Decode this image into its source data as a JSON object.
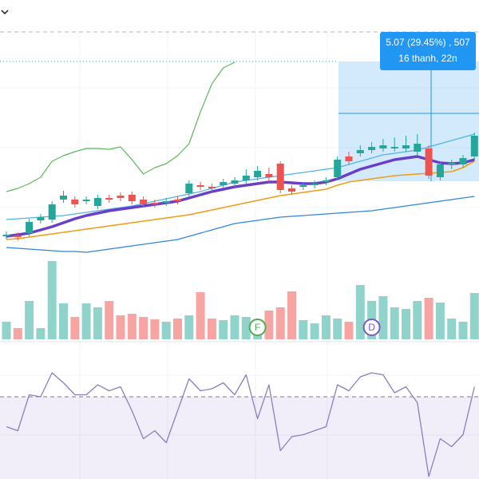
{
  "chart_data": {
    "type": "candlestick",
    "ylim": [
      0,
      300
    ],
    "open": [
      44,
      45,
      48,
      64,
      65,
      90,
      90,
      88,
      82,
      92,
      95,
      96,
      90,
      86,
      86,
      90,
      98,
      108,
      106,
      108,
      110,
      114,
      118,
      122,
      135,
      104,
      106,
      108,
      112,
      118,
      144,
      148,
      152,
      154,
      154,
      154,
      150,
      154,
      118,
      134,
      134,
      144
    ],
    "high": [
      50,
      49,
      66,
      72,
      88,
      101,
      94,
      94,
      96,
      96,
      99,
      100,
      94,
      90,
      92,
      94,
      114,
      112,
      110,
      116,
      118,
      128,
      132,
      130,
      138,
      108,
      112,
      114,
      118,
      144,
      150,
      158,
      162,
      166,
      168,
      170,
      172,
      158,
      138,
      140,
      146,
      174
    ],
    "low": [
      40,
      39,
      44,
      60,
      61,
      86,
      80,
      84,
      78,
      86,
      88,
      84,
      80,
      80,
      82,
      84,
      94,
      102,
      100,
      104,
      106,
      110,
      114,
      112,
      98,
      96,
      102,
      104,
      108,
      114,
      134,
      144,
      148,
      150,
      150,
      150,
      146,
      116,
      114,
      128,
      130,
      140
    ],
    "close": [
      46,
      43,
      62,
      68,
      84,
      95,
      84,
      90,
      92,
      90,
      92,
      88,
      84,
      84,
      88,
      88,
      110,
      106,
      104,
      112,
      114,
      120,
      126,
      118,
      102,
      100,
      108,
      110,
      114,
      140,
      138,
      152,
      156,
      158,
      156,
      158,
      160,
      120,
      134,
      136,
      142,
      170
    ],
    "up_color": "#26a69a",
    "down_color": "#ef5350",
    "level": 263,
    "lines": [
      {
        "color": "#5cb85c",
        "width": 1.2,
        "values": [
          100,
          104,
          110,
          118,
          138,
          145,
          150,
          154,
          154,
          153,
          156,
          140,
          122,
          130,
          135,
          145,
          160,
          200,
          235,
          255,
          262,
          null,
          null,
          null,
          null,
          null,
          null,
          null,
          null,
          null,
          null,
          null,
          null,
          null,
          null,
          null,
          null,
          null,
          null,
          null,
          null,
          null
        ]
      },
      {
        "color": "#4fb3e8",
        "width": 1.2,
        "values": [
          65,
          66,
          67,
          68,
          69,
          70,
          72,
          74,
          76,
          78,
          80,
          82,
          85,
          88,
          91,
          94,
          97,
          100,
          104,
          108,
          112,
          114,
          116,
          118,
          120,
          122,
          124,
          126,
          128,
          130,
          134,
          138,
          142,
          146,
          148,
          150,
          152,
          156,
          160,
          164,
          168,
          172
        ]
      },
      {
        "color": "#2e86de",
        "width": 1.2,
        "values": [
          30,
          29,
          28,
          27,
          26,
          25,
          25,
          24,
          26,
          28,
          30,
          32,
          34,
          36,
          38,
          40,
          44,
          48,
          52,
          56,
          60,
          62,
          64,
          66,
          68,
          69,
          70,
          71,
          72,
          73,
          74,
          75,
          76,
          78,
          80,
          82,
          84,
          86,
          88,
          90,
          92,
          94
        ]
      },
      {
        "color": "#f39c12",
        "width": 1.6,
        "values": [
          40,
          41,
          43,
          45,
          47,
          49,
          51,
          53,
          55,
          57,
          59,
          61,
          63,
          65,
          67,
          69,
          71,
          74,
          77,
          80,
          83,
          86,
          89,
          92,
          95,
          97,
          99,
          101,
          103,
          108,
          112,
          114,
          116,
          118,
          120,
          121,
          122,
          123,
          124,
          125,
          130,
          138
        ]
      },
      {
        "color": "#6a3fc8",
        "width": 3.5,
        "values": [
          44,
          46,
          48,
          52,
          56,
          61,
          66,
          70,
          73,
          76,
          78,
          80,
          82,
          84,
          86,
          88,
          92,
          96,
          100,
          103,
          106,
          108,
          110,
          112,
          112,
          111,
          110,
          110,
          112,
          116,
          122,
          128,
          132,
          136,
          140,
          142,
          144,
          140,
          136,
          135,
          136,
          140
        ]
      }
    ],
    "volume": {
      "ylim": [
        0,
        120
      ],
      "up_color": "#8fd3cb",
      "down_color": "#f6a5a3",
      "values": [
        22,
        14,
        48,
        14,
        98,
        45,
        28,
        45,
        40,
        48,
        30,
        32,
        28,
        25,
        22,
        26,
        30,
        59,
        26,
        24,
        30,
        28,
        20,
        36,
        40,
        60,
        24,
        20,
        30,
        26,
        22,
        68,
        48,
        54,
        40,
        38,
        48,
        52,
        46,
        26,
        22,
        58
      ]
    },
    "rsi": {
      "ylim": [
        0,
        100
      ],
      "level": 70,
      "color": "#8e7cc3",
      "values": [
        55,
        53,
        71,
        70,
        82,
        77,
        71,
        71,
        76,
        73,
        75,
        63,
        49,
        53,
        47,
        63,
        79,
        73,
        74,
        77,
        71,
        81,
        59,
        76,
        43,
        50,
        51,
        53,
        55,
        76,
        73,
        80,
        82,
        81,
        72,
        75,
        67,
        30,
        49,
        45,
        51,
        75
      ]
    },
    "markers": [
      {
        "label": "F",
        "color": "#4caf50",
        "index": 22
      },
      {
        "label": "D",
        "color": "#7e57c2",
        "index": 32
      }
    ],
    "tooltip": [
      "5.07 (29.45%) , 507",
      "16 thanh, 22n"
    ]
  }
}
